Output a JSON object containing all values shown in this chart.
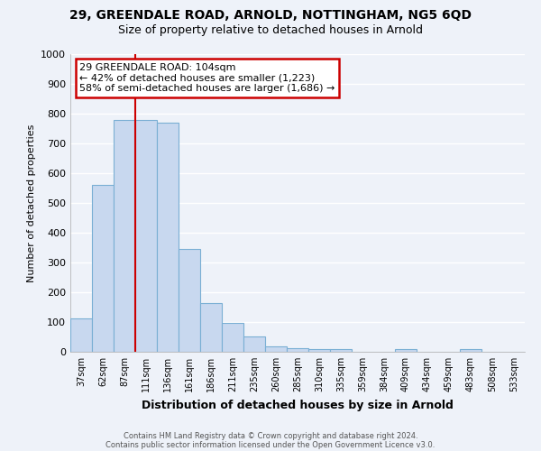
{
  "title1": "29, GREENDALE ROAD, ARNOLD, NOTTINGHAM, NG5 6QD",
  "title2": "Size of property relative to detached houses in Arnold",
  "xlabel": "Distribution of detached houses by size in Arnold",
  "ylabel": "Number of detached properties",
  "categories": [
    "37sqm",
    "62sqm",
    "87sqm",
    "111sqm",
    "136sqm",
    "161sqm",
    "186sqm",
    "211sqm",
    "235sqm",
    "260sqm",
    "285sqm",
    "310sqm",
    "335sqm",
    "359sqm",
    "384sqm",
    "409sqm",
    "434sqm",
    "459sqm",
    "483sqm",
    "508sqm",
    "533sqm"
  ],
  "values": [
    112,
    560,
    780,
    780,
    770,
    345,
    165,
    97,
    53,
    18,
    13,
    10,
    8,
    0,
    0,
    8,
    0,
    0,
    8,
    0,
    0
  ],
  "bar_color": "#c8d8ef",
  "bar_edge_color": "#7aafd4",
  "vline_color": "#cc0000",
  "annotation_text": "29 GREENDALE ROAD: 104sqm\n← 42% of detached houses are smaller (1,223)\n58% of semi-detached houses are larger (1,686) →",
  "annotation_box_color": "white",
  "annotation_box_edge": "#cc0000",
  "ylim": [
    0,
    1000
  ],
  "yticks": [
    0,
    100,
    200,
    300,
    400,
    500,
    600,
    700,
    800,
    900,
    1000
  ],
  "footer1": "Contains HM Land Registry data © Crown copyright and database right 2024.",
  "footer2": "Contains public sector information licensed under the Open Government Licence v3.0.",
  "bg_color": "#eef2f9",
  "grid_color": "#ffffff",
  "title1_fontsize": 10,
  "title2_fontsize": 9
}
